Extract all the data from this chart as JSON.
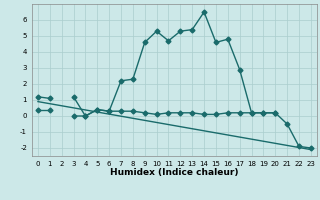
{
  "xlabel": "Humidex (Indice chaleur)",
  "x": [
    0,
    1,
    2,
    3,
    4,
    5,
    6,
    7,
    8,
    9,
    10,
    11,
    12,
    13,
    14,
    15,
    16,
    17,
    18,
    19,
    20,
    21,
    22,
    23
  ],
  "curve1_y": [
    1.2,
    1.1,
    null,
    1.2,
    0.0,
    0.4,
    0.3,
    2.2,
    2.3,
    4.6,
    5.3,
    4.7,
    5.3,
    5.4,
    6.5,
    4.6,
    4.8,
    2.9,
    0.2,
    0.2,
    0.2,
    -0.5,
    -1.9,
    -2.0
  ],
  "curve2_y": [
    0.4,
    0.4,
    null,
    0.0,
    0.0,
    0.4,
    0.3,
    0.3,
    0.3,
    0.2,
    0.1,
    0.2,
    0.2,
    0.2,
    0.1,
    0.1,
    0.2,
    0.2,
    0.2,
    0.2,
    0.2,
    null,
    null,
    null
  ],
  "trend_x": [
    0,
    23
  ],
  "trend_y": [
    0.9,
    -2.1
  ],
  "color": "#1a6b6b",
  "bg_color": "#cce8e8",
  "grid_color": "#aacece",
  "ylim": [
    -2.5,
    7.0
  ],
  "xlim": [
    -0.5,
    23.5
  ],
  "yticks": [
    -2,
    -1,
    0,
    1,
    2,
    3,
    4,
    5,
    6
  ],
  "xticks": [
    0,
    1,
    2,
    3,
    4,
    5,
    6,
    7,
    8,
    9,
    10,
    11,
    12,
    13,
    14,
    15,
    16,
    17,
    18,
    19,
    20,
    21,
    22,
    23
  ],
  "marker": "D",
  "markersize": 2.5,
  "linewidth": 1.0,
  "tick_fontsize": 5.0,
  "xlabel_fontsize": 6.5
}
